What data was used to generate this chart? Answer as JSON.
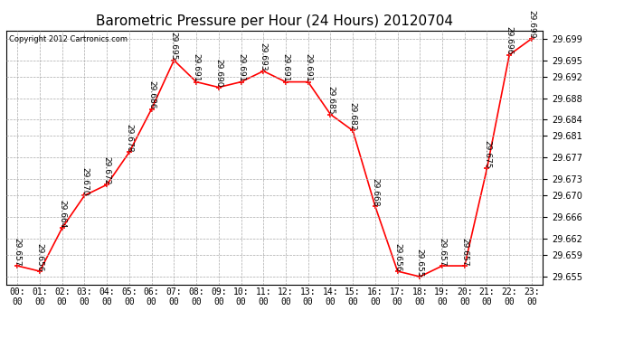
{
  "title": "Barometric Pressure per Hour (24 Hours) 20120704",
  "copyright": "Copyright 2012 Cartronics.com",
  "hours": [
    "00:00",
    "01:00",
    "02:00",
    "03:00",
    "04:00",
    "05:00",
    "06:00",
    "07:00",
    "08:00",
    "09:00",
    "10:00",
    "11:00",
    "12:00",
    "13:00",
    "14:00",
    "15:00",
    "16:00",
    "17:00",
    "18:00",
    "19:00",
    "20:00",
    "21:00",
    "22:00",
    "23:00"
  ],
  "values": [
    29.657,
    29.656,
    29.664,
    29.67,
    29.672,
    29.678,
    29.686,
    29.695,
    29.691,
    29.69,
    29.691,
    29.693,
    29.691,
    29.691,
    29.685,
    29.682,
    29.668,
    29.656,
    29.655,
    29.657,
    29.657,
    29.675,
    29.696,
    29.699
  ],
  "line_color": "#ff0000",
  "marker_color": "#ff0000",
  "bg_color": "#ffffff",
  "grid_color": "#aaaaaa",
  "ylim": [
    29.6535,
    29.7005
  ],
  "yticks": [
    29.655,
    29.659,
    29.662,
    29.666,
    29.67,
    29.673,
    29.677,
    29.681,
    29.684,
    29.688,
    29.692,
    29.695,
    29.699
  ],
  "title_fontsize": 11,
  "label_fontsize": 7,
  "annotation_fontsize": 6.5,
  "copyright_fontsize": 6
}
